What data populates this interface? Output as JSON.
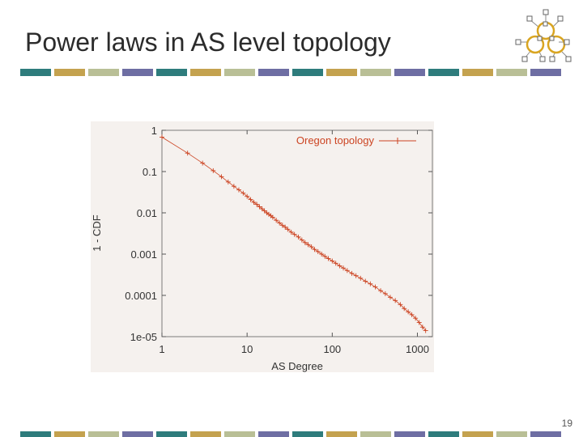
{
  "slide": {
    "title": "Power laws in AS level topology",
    "page_number": "19"
  },
  "colors": {
    "bar_segments": [
      "#2e7c7c",
      "#c4a24f",
      "#b9bf96",
      "#6e6ea3"
    ],
    "plot_background": "#f5f1ee",
    "series_color": "#cc4422"
  },
  "chart_data": {
    "type": "scatter",
    "title": "",
    "xlabel": "AS Degree",
    "ylabel": "1 - CDF",
    "xscale": "log",
    "yscale": "log",
    "xlim": [
      1,
      1500
    ],
    "ylim": [
      1e-05,
      1
    ],
    "x_ticks": [
      {
        "value": 1,
        "label": "1"
      },
      {
        "value": 10,
        "label": "10"
      },
      {
        "value": 100,
        "label": "100"
      },
      {
        "value": 1000,
        "label": "1000"
      }
    ],
    "y_ticks": [
      {
        "value": 1,
        "label": "1"
      },
      {
        "value": 0.1,
        "label": "0.1"
      },
      {
        "value": 0.01,
        "label": "0.01"
      },
      {
        "value": 0.001,
        "label": "0.001"
      },
      {
        "value": 0.0001,
        "label": "0.0001"
      },
      {
        "value": 1e-05,
        "label": "1e-05"
      }
    ],
    "legend_position": "top-right",
    "grid": false,
    "series": [
      {
        "name": "Oregon topology",
        "points": [
          [
            1,
            0.68
          ],
          [
            2,
            0.28
          ],
          [
            3,
            0.16
          ],
          [
            4,
            0.105
          ],
          [
            5,
            0.075
          ],
          [
            6,
            0.056
          ],
          [
            7,
            0.044
          ],
          [
            8,
            0.036
          ],
          [
            9,
            0.03
          ],
          [
            10,
            0.025
          ],
          [
            11,
            0.021
          ],
          [
            12,
            0.018
          ],
          [
            13,
            0.016
          ],
          [
            14,
            0.014
          ],
          [
            15,
            0.0125
          ],
          [
            16,
            0.0112
          ],
          [
            17,
            0.01
          ],
          [
            18,
            0.0092
          ],
          [
            19,
            0.0085
          ],
          [
            20,
            0.0078
          ],
          [
            22,
            0.0066
          ],
          [
            24,
            0.0057
          ],
          [
            26,
            0.005
          ],
          [
            28,
            0.0045
          ],
          [
            30,
            0.004
          ],
          [
            33,
            0.0034
          ],
          [
            36,
            0.003
          ],
          [
            40,
            0.0026
          ],
          [
            44,
            0.0022
          ],
          [
            48,
            0.0019
          ],
          [
            52,
            0.0017
          ],
          [
            57,
            0.0015
          ],
          [
            62,
            0.0013
          ],
          [
            68,
            0.00115
          ],
          [
            75,
            0.001
          ],
          [
            82,
            0.00088
          ],
          [
            90,
            0.00078
          ],
          [
            100,
            0.00068
          ],
          [
            110,
            0.0006
          ],
          [
            122,
            0.00052
          ],
          [
            135,
            0.00046
          ],
          [
            150,
            0.0004
          ],
          [
            170,
            0.00034
          ],
          [
            190,
            0.0003
          ],
          [
            215,
            0.00026
          ],
          [
            245,
            0.00022
          ],
          [
            280,
            0.00019
          ],
          [
            320,
            0.00016
          ],
          [
            370,
            0.00013
          ],
          [
            420,
            0.00011
          ],
          [
            480,
            9e-05
          ],
          [
            550,
            7.5e-05
          ],
          [
            630,
            6e-05
          ],
          [
            700,
            4.8e-05
          ],
          [
            780,
            4e-05
          ],
          [
            860,
            3.4e-05
          ],
          [
            950,
            2.8e-05
          ],
          [
            1050,
            2.2e-05
          ],
          [
            1150,
            1.7e-05
          ],
          [
            1250,
            1.4e-05
          ]
        ]
      }
    ]
  }
}
